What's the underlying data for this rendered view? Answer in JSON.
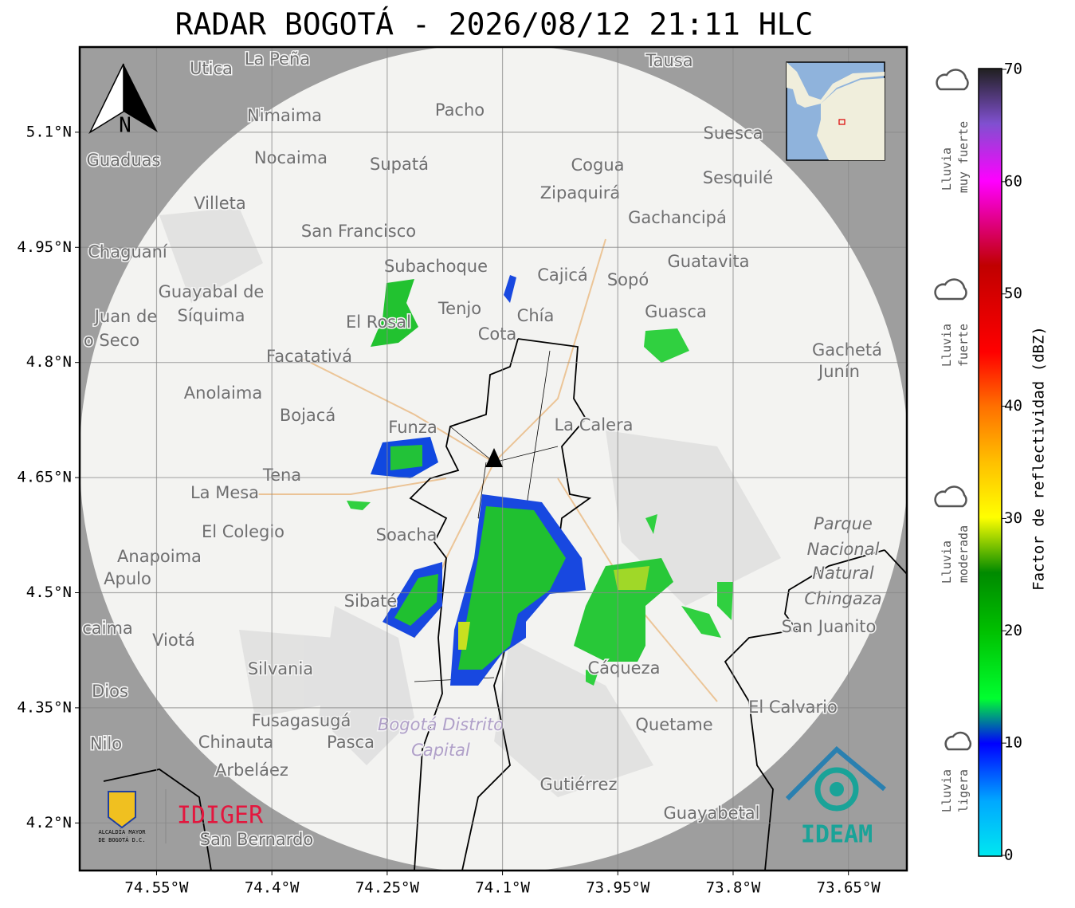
{
  "title": "RADAR BOGOTÁ - 2026/08/12 21:11 HLC",
  "map": {
    "lon_range": [
      -74.65,
      -73.574
    ],
    "lat_range": [
      4.138,
      5.211
    ],
    "lon_ticks": [
      {
        "value": -74.55,
        "label": "74.55°W"
      },
      {
        "value": -74.4,
        "label": "74.4°W"
      },
      {
        "value": -74.25,
        "label": "74.25°W"
      },
      {
        "value": -74.1,
        "label": "74.1°W"
      },
      {
        "value": -73.95,
        "label": "73.95°W"
      },
      {
        "value": -73.8,
        "label": "73.8°W"
      },
      {
        "value": -73.65,
        "label": "73.65°W"
      }
    ],
    "lat_ticks": [
      {
        "value": 5.1,
        "label": "5.1°N"
      },
      {
        "value": 4.95,
        "label": "4.95°N"
      },
      {
        "value": 4.8,
        "label": "4.8°N"
      },
      {
        "value": 4.65,
        "label": "4.65°N"
      },
      {
        "value": 4.5,
        "label": "4.5°N"
      },
      {
        "value": 4.35,
        "label": "4.35°N"
      },
      {
        "value": 4.2,
        "label": "4.2°N"
      }
    ],
    "grid": true,
    "north": "N",
    "places": [
      "La Peña",
      "Utica",
      "Tausa",
      "Pacho",
      "Nimaima",
      "Guaduas",
      "Nocaima",
      "Supatá",
      "Cogua",
      "Suesca",
      "Zipaquirá",
      "Sesquilé",
      "Villeta",
      "Gachancipá",
      "San Francisco",
      "Chaguaní",
      "Guatavita",
      "Subachoque",
      "Cajicá",
      "Sopó",
      "Guayabal de",
      "Síquima",
      "Tenjo",
      "Chía",
      "Guasca",
      "Juan de",
      "o Seco",
      "El Rosal",
      "Cota",
      "Facatativá",
      "Gachetá",
      "Junín",
      "Anolaima",
      "Bojacá",
      "Funza",
      "La Calera",
      "Tena",
      "La Mesa",
      "Parque",
      "Nacional",
      "Natural",
      "Chingaza",
      "Soacha",
      "El Colegio",
      "Anapoima",
      "Apulo",
      "Sibaté",
      "San Juanito",
      "caima",
      "Viotá",
      "Silvania",
      "Cáqueza",
      "Dios",
      "El Calvario",
      "Fusagasugá",
      "Bogotá Distrito",
      "Capital",
      "Quetame",
      "Chinauta",
      "Pasca",
      "Nilo",
      "Arbeláez",
      "Gutiérrez",
      "Guayabetal",
      "San Bernardo"
    ]
  },
  "colorbar": {
    "label": "Factor de reflectividad (dBZ)",
    "range": [
      0,
      70
    ],
    "ticks": [
      0,
      10,
      20,
      30,
      40,
      50,
      60,
      70
    ]
  },
  "legend": [
    [
      "Lluvia",
      "muy fuerte"
    ],
    [
      "Lluvia",
      "fuerte"
    ],
    [
      "Lluvia",
      "moderada"
    ],
    [
      "Lluvia",
      "ligera"
    ]
  ],
  "logos": {
    "alcaldia": [
      "ALCALDÍA MAYOR",
      "DE BOGOTÁ D.C."
    ],
    "idiger": "IDIGER",
    "ideam": "IDEAM"
  }
}
